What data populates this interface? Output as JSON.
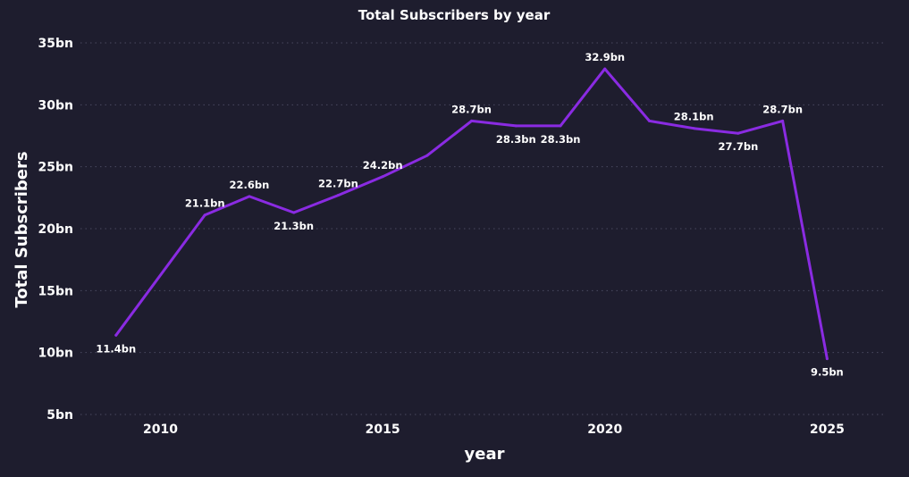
{
  "chart_data": {
    "type": "line",
    "title": "Total Subscribers by year",
    "xlabel": "year",
    "ylabel": "Total Subscribers",
    "x": [
      2009,
      2011,
      2012,
      2013,
      2014,
      2015,
      2016,
      2017,
      2018,
      2019,
      2020,
      2021,
      2022,
      2023,
      2024,
      2025
    ],
    "series": [
      {
        "values": [
          11.4,
          21.1,
          22.6,
          21.3,
          22.7,
          24.2,
          25.9,
          28.7,
          28.3,
          28.3,
          32.9,
          28.7,
          28.1,
          27.7,
          28.7,
          9.5
        ],
        "labels": [
          "11.4bn",
          "21.1bn",
          "22.6bn",
          "21.3bn",
          "22.7bn",
          "24.2bn",
          "",
          "28.7bn",
          "28.3bn",
          "28.3bn",
          "32.9bn",
          "",
          "28.1bn",
          "27.7bn",
          "28.7bn",
          "9.5bn"
        ],
        "color": "#8a2be2"
      }
    ],
    "xticks": [
      2010,
      2015,
      2020,
      2025
    ],
    "xtick_labels": [
      "2010",
      "2015",
      "2020",
      "2025"
    ],
    "yticks": [
      5,
      10,
      15,
      20,
      25,
      30,
      35
    ],
    "ytick_labels": [
      "5bn",
      "10bn",
      "15bn",
      "20bn",
      "25bn",
      "30bn",
      "35bn"
    ],
    "xlim": [
      2008.2,
      2026.3
    ],
    "ylim": [
      5,
      35
    ],
    "grid": true,
    "legend": "none"
  }
}
